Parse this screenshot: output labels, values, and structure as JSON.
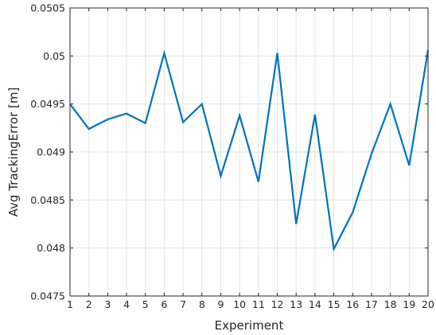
{
  "chart_data": {
    "type": "line",
    "xlabel": "Experiment",
    "ylabel": "Avg TrackingError [m]",
    "xlim": [
      1,
      20
    ],
    "ylim": [
      0.0475,
      0.0505
    ],
    "grid": true,
    "x_ticks": [
      "1",
      "2",
      "3",
      "4",
      "5",
      "6",
      "7",
      "8",
      "9",
      "10",
      "11",
      "12",
      "13",
      "14",
      "15",
      "16",
      "17",
      "18",
      "19",
      "20"
    ],
    "y_ticks": [
      "0.0475",
      "0.048",
      "0.0485",
      "0.049",
      "0.0495",
      "0.05",
      "0.0505"
    ],
    "series": [
      {
        "color": "#0072BD",
        "x": [
          1,
          2,
          3,
          4,
          5,
          6,
          7,
          8,
          9,
          10,
          11,
          12,
          13,
          14,
          15,
          16,
          17,
          18,
          19,
          20
        ],
        "y": [
          0.0495,
          0.04924,
          0.04934,
          0.0494,
          0.0493,
          0.05003,
          0.04931,
          0.0495,
          0.04875,
          0.04938,
          0.04869,
          0.05003,
          0.04825,
          0.04939,
          0.04799,
          0.04837,
          0.04898,
          0.0495,
          0.04886,
          0.05006
        ]
      }
    ]
  }
}
